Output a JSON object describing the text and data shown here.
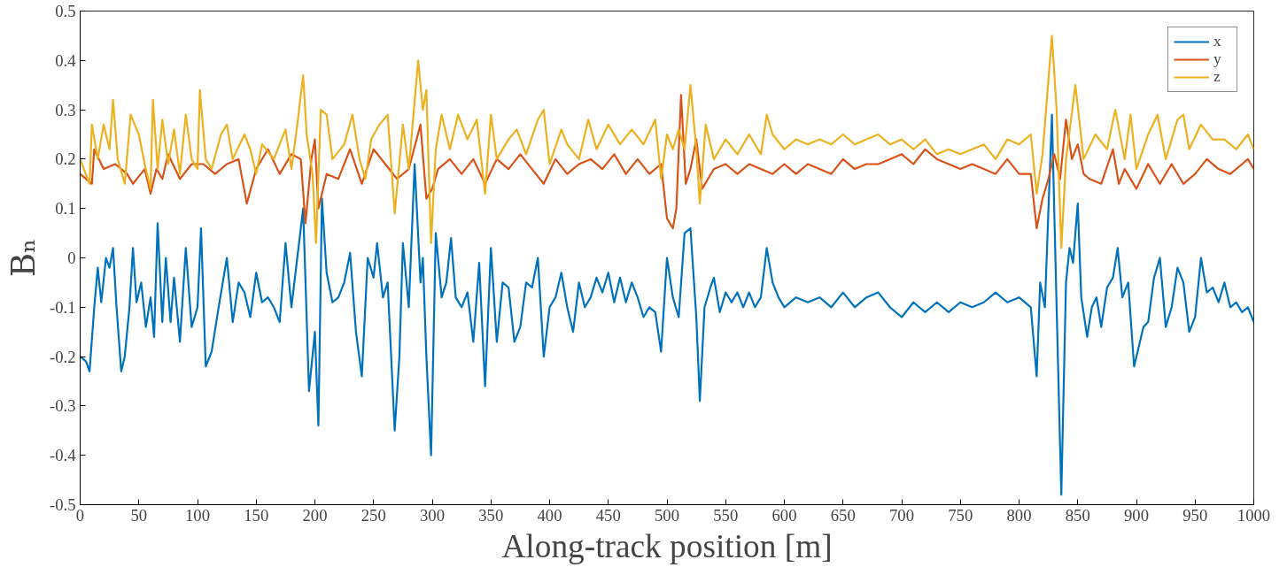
{
  "chart_data": {
    "type": "line",
    "xlabel": "Along-track position [m]",
    "ylabel": "Bₙ",
    "xlim": [
      0,
      1000
    ],
    "xticks": [
      0,
      50,
      100,
      150,
      200,
      250,
      300,
      350,
      400,
      450,
      500,
      550,
      600,
      650,
      700,
      750,
      800,
      850,
      900,
      950,
      1000
    ],
    "ylim": [
      -0.5,
      0.5
    ],
    "yticks": [
      -0.5,
      -0.4,
      -0.3,
      -0.2,
      -0.1,
      0,
      0.1,
      0.2,
      0.3,
      0.4,
      0.5
    ],
    "grid": false,
    "legend": "top right",
    "line_style": "solid",
    "marker": "none",
    "series": [
      {
        "name": "x",
        "color": "#0072bd",
        "x": [
          0,
          5,
          8,
          12,
          15,
          18,
          22,
          25,
          28,
          31,
          35,
          38,
          42,
          45,
          48,
          52,
          56,
          60,
          63,
          66,
          70,
          73,
          77,
          80,
          85,
          90,
          95,
          100,
          103,
          107,
          112,
          118,
          125,
          130,
          135,
          140,
          145,
          150,
          155,
          160,
          165,
          170,
          175,
          180,
          185,
          190,
          195,
          200,
          203,
          206,
          210,
          215,
          220,
          225,
          230,
          235,
          240,
          245,
          250,
          253,
          258,
          262,
          268,
          272,
          275,
          280,
          285,
          290,
          292,
          295,
          299,
          303,
          308,
          312,
          316,
          320,
          325,
          330,
          335,
          340,
          345,
          350,
          355,
          360,
          365,
          370,
          375,
          380,
          385,
          390,
          395,
          400,
          405,
          410,
          415,
          420,
          425,
          430,
          435,
          440,
          445,
          450,
          455,
          460,
          465,
          470,
          475,
          480,
          485,
          490,
          495,
          500,
          505,
          510,
          515,
          520,
          525,
          528,
          532,
          537,
          540,
          545,
          550,
          555,
          560,
          565,
          570,
          575,
          580,
          585,
          590,
          595,
          600,
          610,
          620,
          630,
          640,
          650,
          660,
          670,
          680,
          690,
          700,
          710,
          720,
          730,
          740,
          750,
          760,
          770,
          780,
          790,
          800,
          810,
          815,
          818,
          822,
          828,
          832,
          836,
          840,
          843,
          846,
          850,
          853,
          858,
          862,
          866,
          870,
          875,
          880,
          884,
          888,
          893,
          898,
          902,
          906,
          910,
          915,
          920,
          925,
          930,
          935,
          940,
          945,
          950,
          955,
          960,
          965,
          970,
          975,
          980,
          985,
          990,
          995,
          1000
        ],
        "values": [
          -0.2,
          -0.21,
          -0.23,
          -0.1,
          -0.02,
          -0.09,
          0.0,
          -0.02,
          0.02,
          -0.1,
          -0.23,
          -0.2,
          -0.1,
          0.02,
          -0.09,
          -0.05,
          -0.14,
          -0.08,
          -0.16,
          0.07,
          -0.13,
          0.0,
          -0.13,
          -0.04,
          -0.17,
          0.02,
          -0.14,
          -0.1,
          0.06,
          -0.22,
          -0.19,
          -0.1,
          0.0,
          -0.13,
          -0.05,
          -0.07,
          -0.12,
          -0.03,
          -0.09,
          -0.08,
          -0.1,
          -0.13,
          0.03,
          -0.1,
          0.0,
          0.1,
          -0.27,
          -0.15,
          -0.34,
          0.12,
          -0.03,
          -0.09,
          -0.08,
          -0.05,
          0.01,
          -0.15,
          -0.24,
          0.0,
          -0.04,
          0.03,
          -0.08,
          -0.05,
          -0.35,
          -0.2,
          0.03,
          -0.1,
          0.19,
          -0.05,
          0.0,
          -0.2,
          -0.4,
          0.05,
          -0.08,
          -0.05,
          0.04,
          -0.08,
          -0.1,
          -0.07,
          -0.17,
          -0.01,
          -0.26,
          0.02,
          -0.17,
          -0.05,
          -0.06,
          -0.17,
          -0.14,
          -0.05,
          -0.06,
          0.0,
          -0.2,
          -0.1,
          -0.08,
          -0.03,
          -0.1,
          -0.15,
          -0.05,
          -0.1,
          -0.08,
          -0.04,
          -0.07,
          -0.03,
          -0.09,
          -0.04,
          -0.09,
          -0.05,
          -0.08,
          -0.12,
          -0.1,
          -0.11,
          -0.19,
          0.0,
          -0.08,
          -0.12,
          0.05,
          0.06,
          -0.12,
          -0.29,
          -0.1,
          -0.06,
          -0.04,
          -0.11,
          -0.07,
          -0.09,
          -0.07,
          -0.1,
          -0.07,
          -0.1,
          -0.08,
          0.02,
          -0.05,
          -0.08,
          -0.1,
          -0.08,
          -0.09,
          -0.08,
          -0.1,
          -0.07,
          -0.1,
          -0.08,
          -0.07,
          -0.1,
          -0.12,
          -0.09,
          -0.11,
          -0.09,
          -0.11,
          -0.09,
          -0.1,
          -0.09,
          -0.07,
          -0.09,
          -0.08,
          -0.1,
          -0.24,
          -0.05,
          -0.1,
          0.29,
          -0.1,
          -0.48,
          -0.05,
          0.02,
          -0.01,
          0.11,
          -0.08,
          -0.16,
          -0.1,
          -0.08,
          -0.14,
          -0.06,
          -0.04,
          0.02,
          -0.08,
          -0.05,
          -0.22,
          -0.18,
          -0.14,
          -0.13,
          -0.04,
          0.0,
          -0.14,
          -0.1,
          -0.02,
          -0.05,
          -0.15,
          -0.12,
          0.0,
          -0.07,
          -0.06,
          -0.09,
          -0.05,
          -0.1,
          -0.09,
          -0.11,
          -0.1,
          -0.13
        ]
      },
      {
        "name": "y",
        "color": "#d95319",
        "x": [
          0,
          10,
          12,
          20,
          30,
          40,
          45,
          55,
          60,
          65,
          70,
          75,
          85,
          95,
          105,
          115,
          125,
          135,
          142,
          150,
          160,
          170,
          180,
          188,
          192,
          197,
          200,
          203,
          210,
          220,
          230,
          240,
          250,
          260,
          270,
          280,
          290,
          295,
          300,
          305,
          315,
          325,
          335,
          345,
          355,
          365,
          375,
          385,
          395,
          405,
          415,
          425,
          435,
          445,
          455,
          465,
          475,
          485,
          495,
          500,
          505,
          508,
          512,
          516,
          520,
          525,
          530,
          540,
          550,
          560,
          570,
          580,
          590,
          600,
          610,
          620,
          630,
          640,
          650,
          660,
          670,
          680,
          690,
          700,
          710,
          720,
          730,
          740,
          750,
          760,
          770,
          780,
          790,
          800,
          810,
          815,
          820,
          825,
          830,
          835,
          840,
          845,
          850,
          855,
          860,
          870,
          880,
          885,
          890,
          900,
          910,
          920,
          930,
          940,
          950,
          960,
          970,
          980,
          990,
          995,
          1000
        ],
        "values": [
          0.17,
          0.15,
          0.22,
          0.18,
          0.19,
          0.17,
          0.15,
          0.18,
          0.13,
          0.18,
          0.16,
          0.21,
          0.16,
          0.19,
          0.19,
          0.17,
          0.19,
          0.2,
          0.11,
          0.18,
          0.22,
          0.17,
          0.21,
          0.2,
          0.07,
          0.2,
          0.24,
          0.1,
          0.17,
          0.16,
          0.22,
          0.15,
          0.22,
          0.19,
          0.16,
          0.18,
          0.27,
          0.12,
          0.14,
          0.18,
          0.2,
          0.17,
          0.2,
          0.15,
          0.2,
          0.18,
          0.21,
          0.18,
          0.15,
          0.2,
          0.17,
          0.19,
          0.2,
          0.18,
          0.21,
          0.17,
          0.2,
          0.17,
          0.19,
          0.08,
          0.06,
          0.1,
          0.33,
          0.15,
          0.18,
          0.24,
          0.14,
          0.18,
          0.19,
          0.17,
          0.19,
          0.18,
          0.17,
          0.19,
          0.17,
          0.19,
          0.18,
          0.17,
          0.2,
          0.18,
          0.19,
          0.19,
          0.2,
          0.21,
          0.19,
          0.22,
          0.2,
          0.19,
          0.18,
          0.19,
          0.18,
          0.17,
          0.2,
          0.17,
          0.17,
          0.06,
          0.12,
          0.16,
          0.21,
          0.16,
          0.28,
          0.2,
          0.23,
          0.17,
          0.16,
          0.15,
          0.22,
          0.15,
          0.18,
          0.14,
          0.19,
          0.15,
          0.19,
          0.15,
          0.17,
          0.2,
          0.18,
          0.17,
          0.19,
          0.2,
          0.18
        ]
      },
      {
        "name": "z",
        "color": "#edb120",
        "x": [
          0,
          8,
          10,
          15,
          20,
          25,
          28,
          32,
          38,
          43,
          50,
          55,
          60,
          62,
          66,
          70,
          75,
          80,
          85,
          90,
          95,
          100,
          102,
          107,
          112,
          120,
          125,
          130,
          140,
          145,
          150,
          155,
          165,
          175,
          180,
          185,
          190,
          193,
          198,
          201,
          205,
          210,
          215,
          225,
          232,
          238,
          243,
          248,
          255,
          262,
          268,
          275,
          280,
          288,
          292,
          295,
          299,
          303,
          308,
          315,
          322,
          330,
          338,
          345,
          350,
          355,
          365,
          372,
          380,
          390,
          395,
          400,
          410,
          415,
          425,
          433,
          440,
          450,
          460,
          470,
          480,
          490,
          495,
          500,
          505,
          510,
          515,
          520,
          525,
          528,
          533,
          540,
          550,
          560,
          570,
          580,
          585,
          590,
          600,
          610,
          620,
          630,
          640,
          650,
          660,
          670,
          680,
          690,
          700,
          710,
          720,
          730,
          740,
          750,
          760,
          770,
          780,
          790,
          800,
          810,
          815,
          820,
          828,
          832,
          836,
          840,
          848,
          855,
          865,
          875,
          882,
          890,
          895,
          900,
          910,
          918,
          925,
          935,
          940,
          945,
          955,
          965,
          975,
          985,
          995,
          1000
        ],
        "values": [
          0.2,
          0.15,
          0.27,
          0.2,
          0.27,
          0.22,
          0.32,
          0.2,
          0.15,
          0.29,
          0.25,
          0.19,
          0.14,
          0.32,
          0.18,
          0.28,
          0.19,
          0.26,
          0.17,
          0.29,
          0.2,
          0.18,
          0.34,
          0.2,
          0.18,
          0.25,
          0.27,
          0.2,
          0.25,
          0.22,
          0.17,
          0.23,
          0.2,
          0.26,
          0.18,
          0.27,
          0.37,
          0.25,
          0.17,
          0.03,
          0.3,
          0.29,
          0.2,
          0.23,
          0.29,
          0.2,
          0.16,
          0.24,
          0.27,
          0.29,
          0.09,
          0.27,
          0.18,
          0.4,
          0.3,
          0.34,
          0.03,
          0.22,
          0.29,
          0.22,
          0.29,
          0.24,
          0.28,
          0.13,
          0.29,
          0.2,
          0.24,
          0.26,
          0.21,
          0.28,
          0.3,
          0.19,
          0.26,
          0.23,
          0.2,
          0.28,
          0.22,
          0.27,
          0.23,
          0.26,
          0.23,
          0.28,
          0.16,
          0.25,
          0.22,
          0.26,
          0.22,
          0.35,
          0.22,
          0.11,
          0.27,
          0.2,
          0.24,
          0.21,
          0.25,
          0.21,
          0.29,
          0.25,
          0.22,
          0.24,
          0.23,
          0.24,
          0.23,
          0.25,
          0.23,
          0.24,
          0.25,
          0.23,
          0.24,
          0.22,
          0.24,
          0.21,
          0.22,
          0.21,
          0.22,
          0.23,
          0.2,
          0.24,
          0.23,
          0.25,
          0.13,
          0.21,
          0.45,
          0.3,
          0.02,
          0.2,
          0.35,
          0.2,
          0.25,
          0.22,
          0.3,
          0.2,
          0.29,
          0.18,
          0.25,
          0.29,
          0.2,
          0.28,
          0.29,
          0.22,
          0.27,
          0.24,
          0.24,
          0.22,
          0.25,
          0.22
        ]
      }
    ]
  }
}
